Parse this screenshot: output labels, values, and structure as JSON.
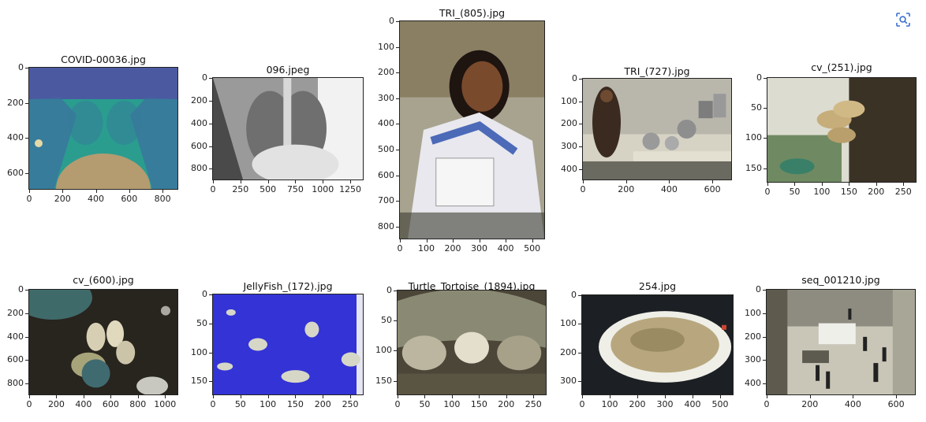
{
  "toolbar": {
    "icon": "image-search-icon"
  },
  "panels": [
    {
      "title": "COVID-00036.jpg",
      "yticks": [
        "0",
        "200",
        "400",
        "600"
      ],
      "xticks": [
        "0",
        "200",
        "400",
        "600",
        "800"
      ],
      "scene": "xray-teal"
    },
    {
      "title": "096.jpeg",
      "yticks": [
        "0",
        "200",
        "400",
        "600",
        "800"
      ],
      "xticks": [
        "0",
        "250",
        "500",
        "750",
        "1000",
        "1250"
      ],
      "scene": "xray-gray"
    },
    {
      "title": "TRI_(805).jpg",
      "yticks": [
        "0",
        "100",
        "200",
        "300",
        "400",
        "500",
        "600",
        "700",
        "800"
      ],
      "xticks": [
        "0",
        "100",
        "200",
        "300",
        "400",
        "500"
      ],
      "scene": "portrait-girl"
    },
    {
      "title": "TRI_(727).jpg",
      "yticks": [
        "0",
        "100",
        "200",
        "300",
        "400"
      ],
      "xticks": [
        "0",
        "200",
        "400",
        "600"
      ],
      "scene": "pots-shelf"
    },
    {
      "title": "cv_(251).jpg",
      "yticks": [
        "0",
        "50",
        "100",
        "150"
      ],
      "xticks": [
        "0",
        "50",
        "100",
        "150",
        "200",
        "250"
      ],
      "scene": "mushroom-tree"
    },
    {
      "title": "cv_(600).jpg",
      "yticks": [
        "0",
        "200",
        "400",
        "600",
        "800"
      ],
      "xticks": [
        "0",
        "200",
        "400",
        "600",
        "800",
        "1000"
      ],
      "scene": "mushrooms-ground"
    },
    {
      "title": "JellyFish_(172).jpg",
      "yticks": [
        "0",
        "50",
        "100",
        "150"
      ],
      "xticks": [
        "0",
        "50",
        "100",
        "150",
        "200",
        "250"
      ],
      "scene": "jellyfish-blue"
    },
    {
      "title": "Turtle_Tortoise_(1894).jpg",
      "yticks": [
        "0",
        "50",
        "100",
        "150"
      ],
      "xticks": [
        "0",
        "50",
        "100",
        "150",
        "200",
        "250"
      ],
      "scene": "tortoise"
    },
    {
      "title": "254.jpg",
      "yticks": [
        "0",
        "100",
        "200",
        "300"
      ],
      "xticks": [
        "0",
        "100",
        "200",
        "300",
        "400",
        "500"
      ],
      "scene": "food-plate"
    },
    {
      "title": "seq_001210.jpg",
      "yticks": [
        "0",
        "100",
        "200",
        "300",
        "400"
      ],
      "xticks": [
        "0",
        "200",
        "400",
        "600"
      ],
      "scene": "mall-crowd"
    }
  ]
}
